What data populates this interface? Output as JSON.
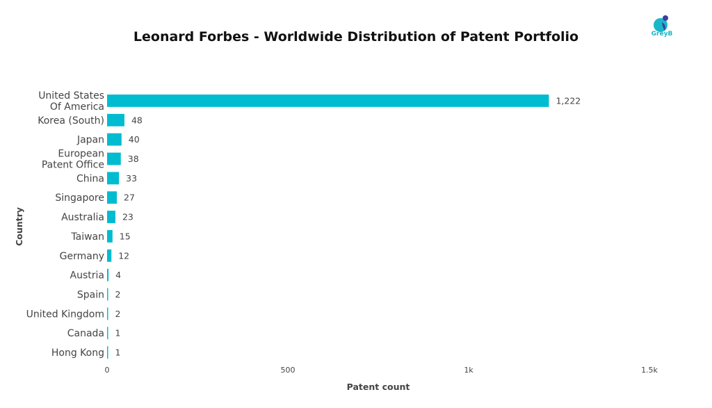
{
  "title": "Leonard Forbes - Worldwide Distribution of Patent Portfolio",
  "logo": {
    "text": "GreyB",
    "color": "#1ab7c9"
  },
  "chart_data": {
    "type": "bar",
    "orientation": "horizontal",
    "bar_color": "#00bcd0",
    "xlabel": "Patent count",
    "ylabel": "Country",
    "xlim": [
      0,
      1500
    ],
    "xticks": [
      {
        "value": 0,
        "label": "0"
      },
      {
        "value": 500,
        "label": "500"
      },
      {
        "value": 1000,
        "label": "1k"
      },
      {
        "value": 1500,
        "label": "1.5k"
      }
    ],
    "categories": [
      [
        "United States",
        "Of America"
      ],
      [
        "Korea (South)"
      ],
      [
        "Japan"
      ],
      [
        "European",
        "Patent Office"
      ],
      [
        "China"
      ],
      [
        "Singapore"
      ],
      [
        "Australia"
      ],
      [
        "Taiwan"
      ],
      [
        "Germany"
      ],
      [
        "Austria"
      ],
      [
        "Spain"
      ],
      [
        "United Kingdom"
      ],
      [
        "Canada"
      ],
      [
        "Hong Kong"
      ]
    ],
    "values": [
      1222,
      48,
      40,
      38,
      33,
      27,
      23,
      15,
      12,
      4,
      2,
      2,
      1,
      1
    ],
    "value_labels": [
      "1,222",
      "48",
      "40",
      "38",
      "33",
      "27",
      "23",
      "15",
      "12",
      "4",
      "2",
      "2",
      "1",
      "1"
    ],
    "grid": false,
    "legend": "none"
  }
}
